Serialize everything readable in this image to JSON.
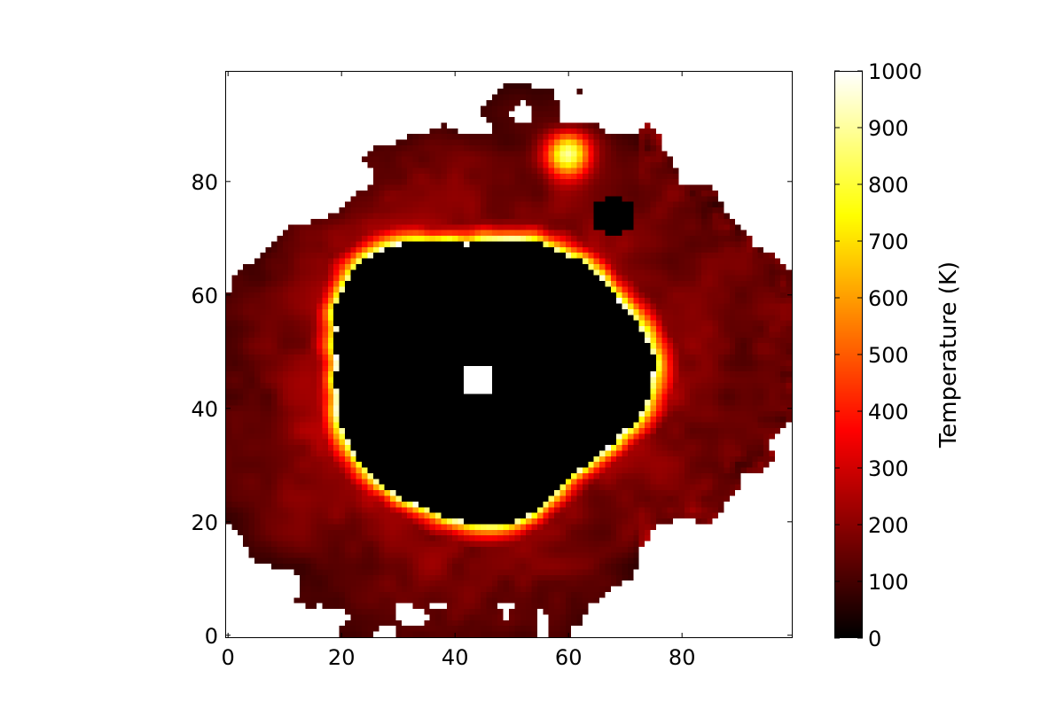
{
  "chart_data": {
    "type": "heatmap",
    "title": "",
    "xlabel": "",
    "ylabel": "",
    "xlim": [
      -0.5,
      99.5
    ],
    "ylim": [
      -0.5,
      99.5
    ],
    "grid_shape": [
      100,
      100
    ],
    "xticks": [
      0,
      20,
      40,
      60,
      80
    ],
    "yticks": [
      0,
      20,
      40,
      60,
      80
    ],
    "colormap": "hot",
    "colorbar": {
      "label": "Temperature (K)",
      "range": [
        0,
        1000
      ],
      "ticks": [
        0,
        100,
        200,
        300,
        400,
        500,
        600,
        700,
        800,
        900,
        1000
      ]
    },
    "features": {
      "cold_core": {
        "center": [
          45,
          46
        ],
        "approx_radius": [
          28,
          25
        ],
        "value": 0
      },
      "hot_ring": {
        "value_peak": 1000,
        "typical_value": 850
      },
      "outer_halo": {
        "value_range": [
          80,
          300
        ]
      },
      "hot_spot": {
        "center": [
          60,
          85
        ],
        "value": 750
      },
      "hole_center": {
        "center": [
          44,
          45
        ],
        "value": null
      },
      "nan_regions": "white pixels: masked / no data"
    }
  }
}
